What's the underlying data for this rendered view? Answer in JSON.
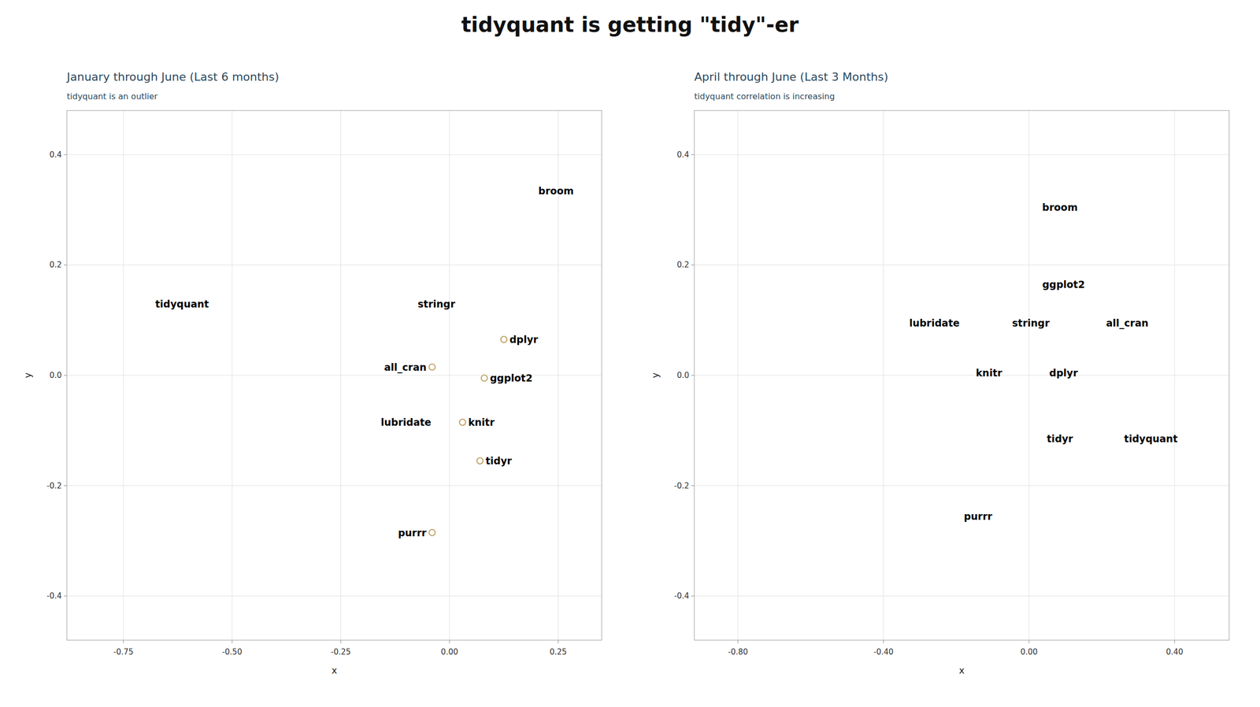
{
  "title": "tidyquant is getting \"tidy\"-er",
  "chart_data": [
    {
      "type": "scatter",
      "title": "January through June (Last 6 months)",
      "subtitle": "tidyquant is an outlier",
      "x_label": "x",
      "y_label": "y",
      "xlim": [
        -0.88,
        0.35
      ],
      "ylim": [
        -0.48,
        0.48
      ],
      "xticks": [
        -0.75,
        {
          "value": -0.5,
          "label": "-0.50"
        },
        -0.25,
        {
          "value": 0,
          "label": "0.00"
        },
        0.25
      ],
      "yticks": [
        -0.4,
        -0.2,
        {
          "value": 0,
          "label": "0.0"
        },
        0.2,
        0.4
      ],
      "grid": true,
      "series": [
        {
          "marker": "circle",
          "color": "#c0a060",
          "labels": [
            "dplyr",
            "ggplot2",
            "all_cran",
            "knitr",
            "tidyr",
            "purrr"
          ],
          "x": [
            0.125,
            0.08,
            -0.04,
            0.03,
            0.07,
            -0.04
          ],
          "values": [
            0.065,
            -0.005,
            0.015,
            -0.085,
            -0.155,
            -0.285
          ]
        },
        {
          "marker": "none",
          "labels": [
            "broom",
            "stringr",
            "lubridate",
            "tidyquant"
          ],
          "x": [
            0.245,
            -0.03,
            -0.1,
            -0.615
          ],
          "values": [
            0.335,
            0.13,
            -0.085,
            0.13
          ]
        }
      ]
    },
    {
      "type": "scatter",
      "title": "April through June (Last 3 Months)",
      "subtitle": "tidyquant correlation is increasing",
      "x_label": "x",
      "y_label": "y",
      "xlim": [
        -0.92,
        0.55
      ],
      "ylim": [
        -0.48,
        0.48
      ],
      "xticks": [
        {
          "value": -0.8,
          "label": "-0.80"
        },
        {
          "value": -0.4,
          "label": "-0.40"
        },
        {
          "value": 0,
          "label": "0.00"
        },
        {
          "value": 0.4,
          "label": "0.40"
        }
      ],
      "yticks": [
        -0.4,
        -0.2,
        {
          "value": 0,
          "label": "0.0"
        },
        0.2,
        0.4
      ],
      "grid": true,
      "series": [
        {
          "marker": "none",
          "labels": [
            "broom",
            "ggplot2",
            "all_cran",
            "stringr",
            "lubridate",
            "dplyr",
            "knitr",
            "tidyr",
            "tidyquant",
            "purrr"
          ],
          "x": [
            0.085,
            0.095,
            0.27,
            0.005,
            -0.26,
            0.095,
            -0.11,
            0.085,
            0.335,
            -0.14
          ],
          "values": [
            0.305,
            0.165,
            0.095,
            0.095,
            0.095,
            0.005,
            0.005,
            -0.115,
            -0.115,
            -0.255
          ]
        }
      ]
    }
  ]
}
